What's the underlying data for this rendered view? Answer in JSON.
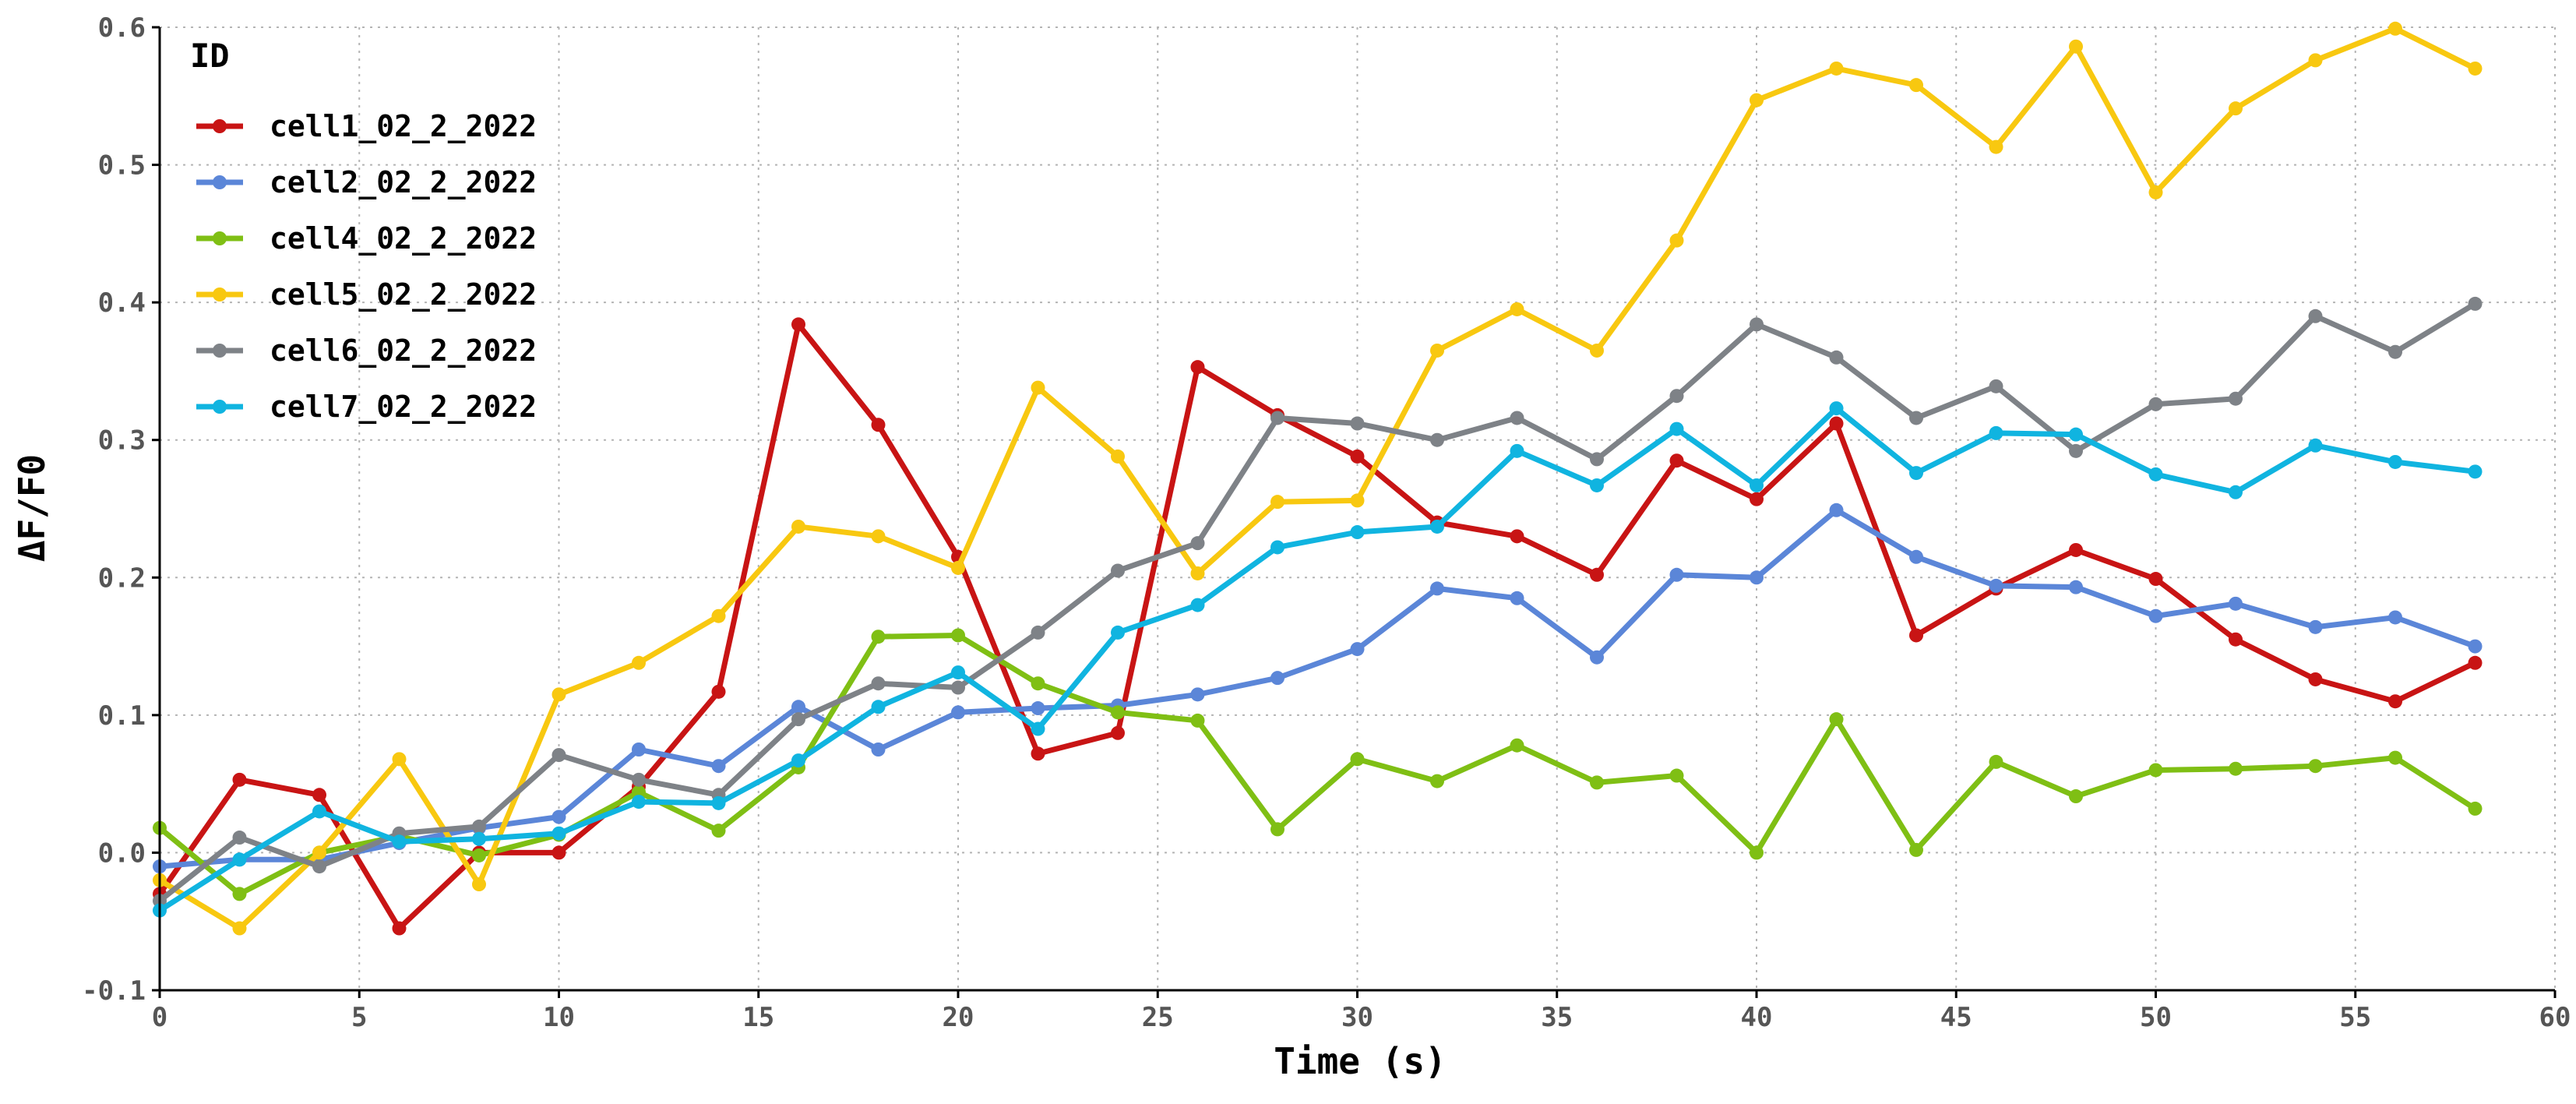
{
  "chart_data": {
    "type": "line",
    "xlabel": "Time (s)",
    "ylabel": "ΔF/F0",
    "xlim": [
      0,
      60
    ],
    "ylim": [
      -0.1,
      0.6
    ],
    "xticks": [
      "0",
      "5",
      "10",
      "15",
      "20",
      "25",
      "30",
      "35",
      "40",
      "45",
      "50",
      "55",
      "60"
    ],
    "yticks": [
      "-0.1",
      "0.0",
      "0.1",
      "0.2",
      "0.3",
      "0.4",
      "0.5",
      "0.6"
    ],
    "grid": true,
    "legend": {
      "title": "ID",
      "placement": "top-left"
    },
    "x": [
      0,
      2,
      4,
      6,
      8,
      10,
      12,
      14,
      16,
      18,
      20,
      22,
      24,
      26,
      28,
      30,
      32,
      34,
      36,
      38,
      40,
      42,
      44,
      46,
      48,
      50,
      52,
      54,
      56,
      58
    ],
    "series": [
      {
        "name": "cell1_02_2_2022",
        "color": "#c81414",
        "values": [
          -0.03,
          0.053,
          0.042,
          -0.055,
          0.0,
          0.0,
          0.048,
          0.117,
          0.384,
          0.311,
          0.215,
          0.072,
          0.087,
          0.353,
          0.318,
          0.288,
          0.24,
          0.23,
          0.202,
          0.285,
          0.257,
          0.312,
          0.158,
          0.192,
          0.22,
          0.199,
          0.155,
          0.126,
          0.11,
          0.138
        ]
      },
      {
        "name": "cell2_02_2_2022",
        "color": "#5b86d8",
        "values": [
          -0.01,
          -0.005,
          -0.005,
          0.007,
          0.018,
          0.026,
          0.075,
          0.063,
          0.106,
          0.075,
          0.102,
          0.105,
          0.107,
          0.115,
          0.127,
          0.148,
          0.192,
          0.185,
          0.142,
          0.202,
          0.2,
          0.249,
          0.215,
          0.194,
          0.193,
          0.172,
          0.181,
          0.164,
          0.171,
          0.15
        ]
      },
      {
        "name": "cell4_02_2_2022",
        "color": "#7fbf14",
        "values": [
          0.018,
          -0.03,
          0.0,
          0.012,
          -0.002,
          0.013,
          0.044,
          0.016,
          0.062,
          0.157,
          0.158,
          0.123,
          0.102,
          0.096,
          0.017,
          0.068,
          0.052,
          0.078,
          0.051,
          0.056,
          0.0,
          0.097,
          0.002,
          0.066,
          0.041,
          0.06,
          0.061,
          0.063,
          0.069,
          0.032
        ]
      },
      {
        "name": "cell5_02_2_2022",
        "color": "#f8c810",
        "values": [
          -0.02,
          -0.055,
          0.0,
          0.068,
          -0.023,
          0.115,
          0.138,
          0.172,
          0.237,
          0.23,
          0.207,
          0.338,
          0.288,
          0.203,
          0.255,
          0.256,
          0.365,
          0.395,
          0.365,
          0.445,
          0.547,
          0.57,
          0.558,
          0.513,
          0.586,
          0.48,
          0.541,
          0.576,
          0.599,
          0.57
        ]
      },
      {
        "name": "cell6_02_2_2022",
        "color": "#7e8287",
        "values": [
          -0.035,
          0.011,
          -0.01,
          0.014,
          0.019,
          0.071,
          0.053,
          0.042,
          0.097,
          0.123,
          0.12,
          0.16,
          0.205,
          0.225,
          0.316,
          0.312,
          0.3,
          0.316,
          0.286,
          0.332,
          0.384,
          0.36,
          0.316,
          0.339,
          0.292,
          0.326,
          0.33,
          0.39,
          0.364,
          0.399
        ]
      },
      {
        "name": "cell7_02_2_2022",
        "color": "#10b4e0",
        "values": [
          -0.042,
          -0.005,
          0.03,
          0.008,
          0.01,
          0.014,
          0.037,
          0.036,
          0.067,
          0.106,
          0.131,
          0.09,
          0.16,
          0.18,
          0.222,
          0.233,
          0.237,
          0.292,
          0.267,
          0.308,
          0.267,
          0.323,
          0.276,
          0.305,
          0.304,
          0.275,
          0.262,
          0.296,
          0.284,
          0.277
        ]
      }
    ]
  }
}
